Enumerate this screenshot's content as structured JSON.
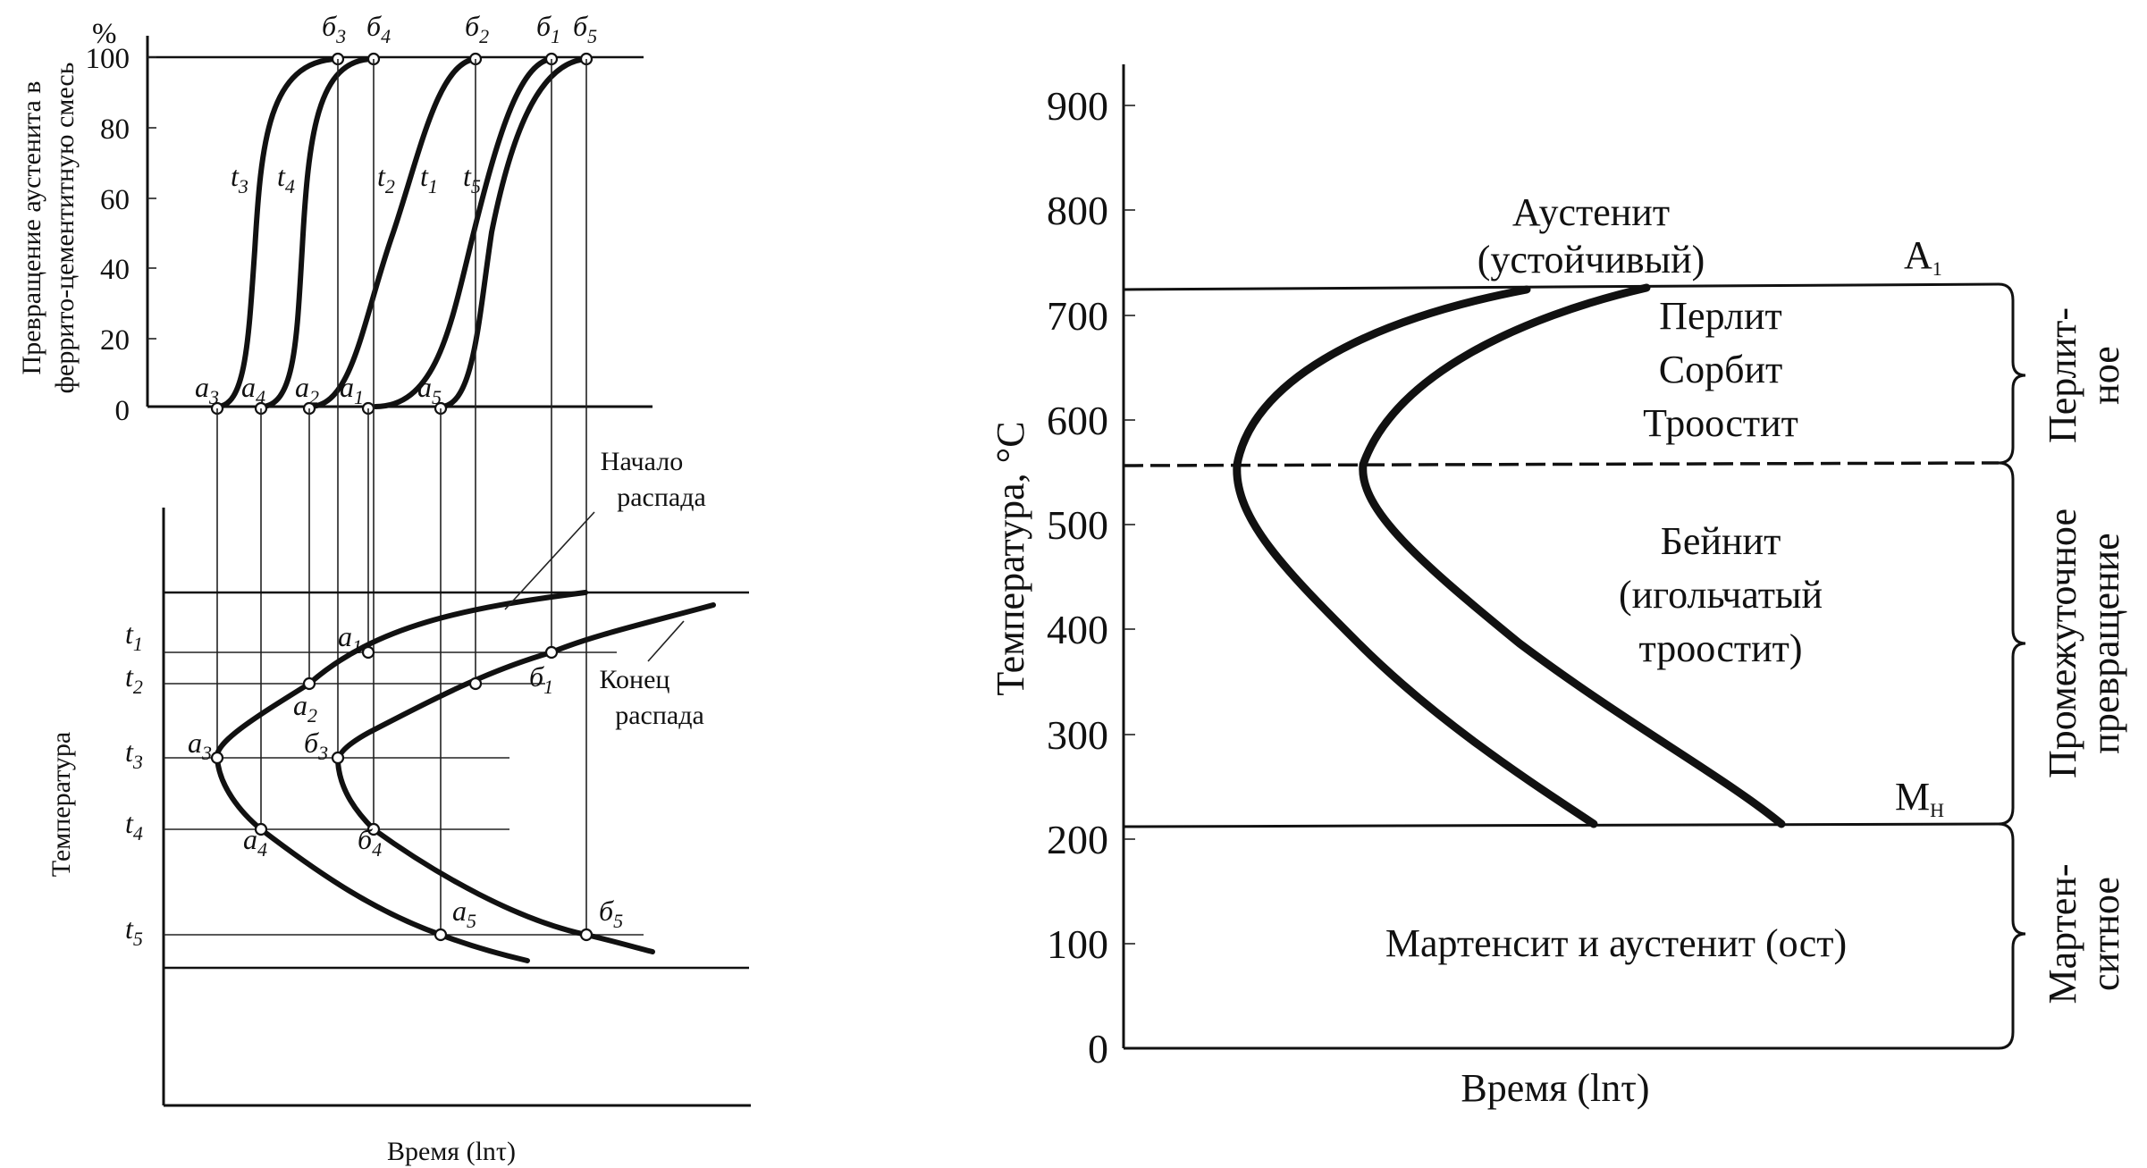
{
  "left_top": {
    "percent_unit": "%",
    "y_ticks": [
      "100",
      "80",
      "60",
      "40",
      "20",
      "0"
    ],
    "y_label_line1": "Превращение аустенита в",
    "y_label_line2": "феррито-цементитную смесь",
    "curve_labels": [
      {
        "base": "t",
        "sub": "3"
      },
      {
        "base": "t",
        "sub": "4"
      },
      {
        "base": "t",
        "sub": "2"
      },
      {
        "base": "t",
        "sub": "1"
      },
      {
        "base": "t",
        "sub": "5"
      }
    ],
    "bottom_points": [
      {
        "base": "a",
        "sub": "3"
      },
      {
        "base": "a",
        "sub": "4"
      },
      {
        "base": "a",
        "sub": "2"
      },
      {
        "base": "a",
        "sub": "1"
      },
      {
        "base": "a",
        "sub": "5"
      }
    ],
    "top_points": [
      {
        "base": "б",
        "sub": "3"
      },
      {
        "base": "б",
        "sub": "4"
      },
      {
        "base": "б",
        "sub": "2"
      },
      {
        "base": "б",
        "sub": "1"
      },
      {
        "base": "б",
        "sub": "5"
      }
    ]
  },
  "left_bottom": {
    "y_label": "Температура",
    "x_label": "Время (lnτ)",
    "start_label_line1": "Начало",
    "start_label_line2": "распада",
    "end_label_line1": "Конец",
    "end_label_line2": "распада",
    "temp_levels": [
      {
        "base": "t",
        "sub": "1"
      },
      {
        "base": "t",
        "sub": "2"
      },
      {
        "base": "t",
        "sub": "3"
      },
      {
        "base": "t",
        "sub": "4"
      },
      {
        "base": "t",
        "sub": "5"
      }
    ],
    "point_labels": {
      "a1": {
        "base": "a",
        "sub": "1"
      },
      "a2": {
        "base": "a",
        "sub": "2"
      },
      "a3": {
        "base": "a",
        "sub": "3"
      },
      "a4": {
        "base": "a",
        "sub": "4"
      },
      "a5": {
        "base": "a",
        "sub": "5"
      },
      "b1": {
        "base": "б",
        "sub": "1"
      },
      "b3": {
        "base": "б",
        "sub": "3"
      },
      "b4": {
        "base": "б",
        "sub": "4"
      },
      "b5": {
        "base": "б",
        "sub": "5"
      }
    }
  },
  "right": {
    "y_ticks": [
      "900",
      "800",
      "700",
      "600",
      "500",
      "400",
      "300",
      "200",
      "100",
      "0"
    ],
    "y_label": "Температура, °С",
    "x_label": "Время (lnτ)",
    "austenite_line1": "Аустенит",
    "austenite_line2": "(устойчивый)",
    "a1_label": {
      "base": "A",
      "sub": "1"
    },
    "mn_label": {
      "base": "M",
      "sub": "Н"
    },
    "pearlite_line1": "Перлит",
    "pearlite_line2": "Сорбит",
    "pearlite_line3": "Троостит",
    "bainite_line1": "Бейнит",
    "bainite_line2": "(игольчатый",
    "bainite_line3": "троостит)",
    "martensite": "Мартенсит и аустенит (ост)",
    "zones": [
      {
        "line1": "Перлит-",
        "line2": "ное"
      },
      {
        "line1": "Промежуточное",
        "line2": "превращение"
      },
      {
        "line1": "Мартен-",
        "line2": "ситное"
      }
    ]
  }
}
